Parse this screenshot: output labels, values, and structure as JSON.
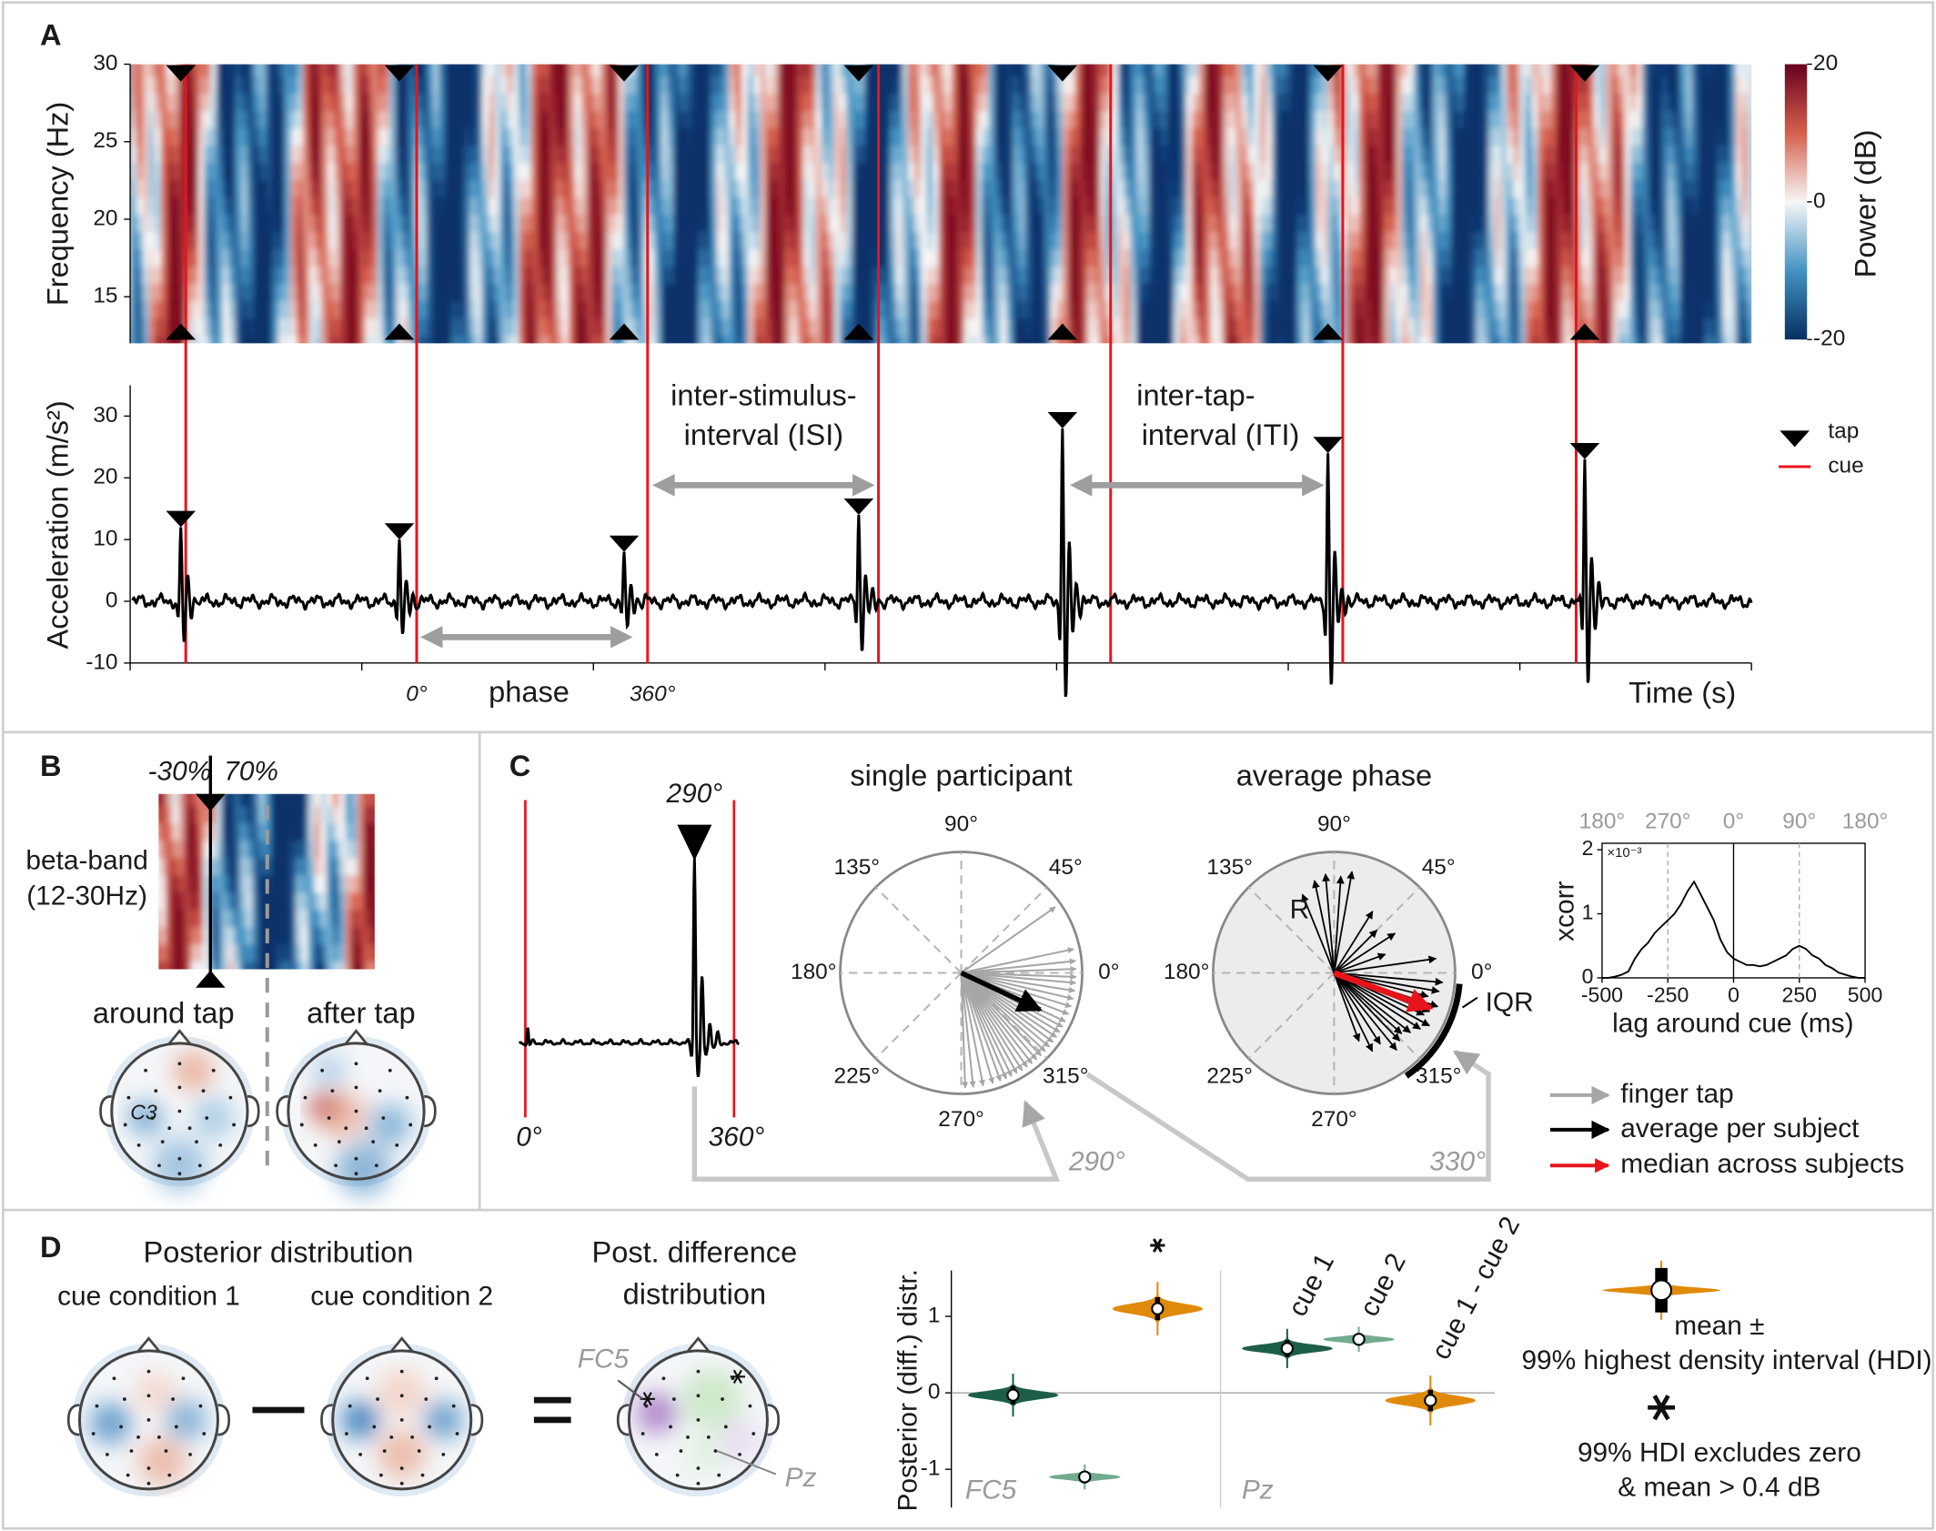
{
  "panel_labels": [
    "A",
    "B",
    "C",
    "D"
  ],
  "panel_a": {
    "freq_ylabel": "Frequency (Hz)",
    "freq_ylim": [
      12,
      30
    ],
    "freq_yticks": [
      15,
      20,
      25,
      30
    ],
    "colorbar_label": "Power (dB)",
    "colorbar_lim": [
      -20,
      20
    ],
    "colorbar_ticks": [
      -20,
      0,
      20
    ],
    "acc_ylabel": "Acceleration (m/s²)",
    "acc_ylim": [
      -10,
      35
    ],
    "acc_yticks": [
      -10,
      0,
      10,
      20,
      30
    ],
    "xlabel": "Time (s)",
    "tap_peaks": [
      12,
      10,
      8,
      14,
      28,
      24,
      23
    ],
    "isi_label": [
      "inter-stimulus-",
      "interval (ISI)"
    ],
    "iti_label": [
      "inter-tap-",
      "interval (ITI)"
    ],
    "phase_start": "0°",
    "phase_label": "phase",
    "phase_end": "360°",
    "legend": [
      {
        "name": "tap",
        "color": "#000000"
      },
      {
        "name": "cue",
        "color": "#e8141b"
      }
    ]
  },
  "panel_b": {
    "onset_before": "-30%",
    "onset_after": "70%",
    "band_label": [
      "beta-band",
      "(12-30Hz)"
    ],
    "around": "around tap",
    "after": "after tap",
    "electrode": "C3"
  },
  "panel_c": {
    "trace_tap_phase": "290°",
    "trace_start": "0°",
    "trace_end": "360°",
    "single_title": "single participant",
    "average_title": "average phase",
    "polar_ticks": [
      {
        "value": 0,
        "label": "0°"
      },
      {
        "value": 45,
        "label": "45°"
      },
      {
        "value": 90,
        "label": "90°"
      },
      {
        "value": 135,
        "label": "135°"
      },
      {
        "value": 180,
        "label": "180°"
      },
      {
        "value": 225,
        "label": "225°"
      },
      {
        "value": 270,
        "label": "270°"
      },
      {
        "value": 315,
        "label": "315°"
      }
    ],
    "single_taps_deg": [
      272,
      276,
      281,
      286,
      290,
      293,
      296,
      299,
      302,
      305,
      308,
      311,
      314,
      317,
      320,
      323,
      326,
      329,
      332,
      335,
      339,
      343,
      347,
      351,
      355,
      358,
      2,
      6,
      12,
      35
    ],
    "single_mean_deg": 335,
    "single_mean_r": 0.72,
    "subjects_deg": [
      80,
      86,
      95,
      102,
      112,
      58,
      45,
      33,
      20,
      8,
      355,
      350,
      346,
      342,
      338,
      335,
      331,
      327,
      322,
      318,
      314,
      309,
      303,
      296,
      290
    ],
    "subjects_r": [
      0.85,
      0.8,
      0.82,
      0.78,
      0.7,
      0.6,
      0.5,
      0.6,
      0.45,
      0.85,
      0.9,
      0.88,
      0.8,
      0.9,
      0.85,
      0.82,
      0.9,
      0.85,
      0.8,
      0.75,
      0.78,
      0.82,
      0.7,
      0.72,
      0.6
    ],
    "median_deg": 340,
    "median_r": 0.85,
    "iqr_deg": [
      305,
      355
    ],
    "r_label": "R",
    "iqr_label": "IQR",
    "callout_single": "290°",
    "callout_average": "330°",
    "xcorr": {
      "ylabel": "xcorr",
      "ylim": [
        0,
        2.1
      ],
      "yticks": [
        0,
        1,
        2
      ],
      "yscale_label": "×10⁻³",
      "xlim": [
        -500,
        500
      ],
      "xticks": [
        -500,
        -250,
        0,
        250,
        500
      ],
      "xlabel": "lag around cue (ms)",
      "phase_ticks": [
        {
          "value": -500,
          "label": "180°"
        },
        {
          "value": -250,
          "label": "270°"
        },
        {
          "value": 0,
          "label": "0°"
        },
        {
          "value": 250,
          "label": "90°"
        },
        {
          "value": 500,
          "label": "180°"
        }
      ],
      "lags": [
        -500,
        -475,
        -450,
        -425,
        -400,
        -375,
        -350,
        -325,
        -300,
        -275,
        -250,
        -225,
        -200,
        -175,
        -150,
        -125,
        -100,
        -75,
        -50,
        -25,
        0,
        25,
        50,
        75,
        100,
        125,
        150,
        175,
        200,
        225,
        250,
        275,
        300,
        325,
        350,
        375,
        400,
        425,
        450,
        475,
        500
      ],
      "values": [
        0,
        0,
        0.02,
        0.05,
        0.1,
        0.3,
        0.45,
        0.55,
        0.7,
        0.8,
        0.9,
        1.0,
        1.15,
        1.35,
        1.5,
        1.3,
        1.1,
        0.9,
        0.6,
        0.4,
        0.3,
        0.25,
        0.2,
        0.2,
        0.18,
        0.2,
        0.25,
        0.3,
        0.35,
        0.45,
        0.5,
        0.45,
        0.35,
        0.3,
        0.2,
        0.15,
        0.08,
        0.05,
        0.02,
        0,
        0
      ]
    },
    "legend": [
      {
        "name": "finger tap",
        "color": "#a6a6a6"
      },
      {
        "name": "average per subject",
        "color": "#000000"
      },
      {
        "name": "median across subjects",
        "color": "#e8141b"
      }
    ]
  },
  "panel_d": {
    "title_posterior": "Posterior distribution",
    "cond1": "cue condition 1",
    "cond2": "cue condition 2",
    "diff_title": [
      "Post. difference",
      "distribution"
    ],
    "fc5": "FC5",
    "pz": "Pz",
    "ylabel": "Posterior (diff.) distr.",
    "ylim": [
      -1.5,
      1.6
    ],
    "yticks": [
      -1,
      0,
      1
    ],
    "groups": [
      {
        "name": "FC5",
        "violins": [
          {
            "mean": -0.03,
            "hdi": [
              -0.15,
              0.09
            ],
            "color": "#1d5e4a",
            "significant": false
          },
          {
            "mean": -1.1,
            "hdi": [
              -1.17,
              -1.03
            ],
            "color": "#72ab8e",
            "significant": false
          },
          {
            "mean": 1.1,
            "hdi": [
              0.95,
              1.25
            ],
            "color": "#e08a0b",
            "significant": true
          }
        ]
      },
      {
        "name": "Pz",
        "violins": [
          {
            "mean": 0.58,
            "hdi": [
              0.47,
              0.69
            ],
            "color": "#1d5e4a",
            "significant": false
          },
          {
            "mean": 0.7,
            "hdi": [
              0.63,
              0.77
            ],
            "color": "#72ab8e",
            "significant": false
          },
          {
            "mean": -0.1,
            "hdi": [
              -0.24,
              0.04
            ],
            "color": "#e08a0b",
            "significant": false
          }
        ]
      }
    ],
    "violin_labels": [
      "cue 1",
      "cue 2",
      "cue 1 - cue 2"
    ],
    "legend_mean": [
      "mean ±",
      "99% highest density interval (HDI)"
    ],
    "legend_star": [
      "99% HDI excludes zero",
      "& mean > 0.4 dB"
    ]
  }
}
